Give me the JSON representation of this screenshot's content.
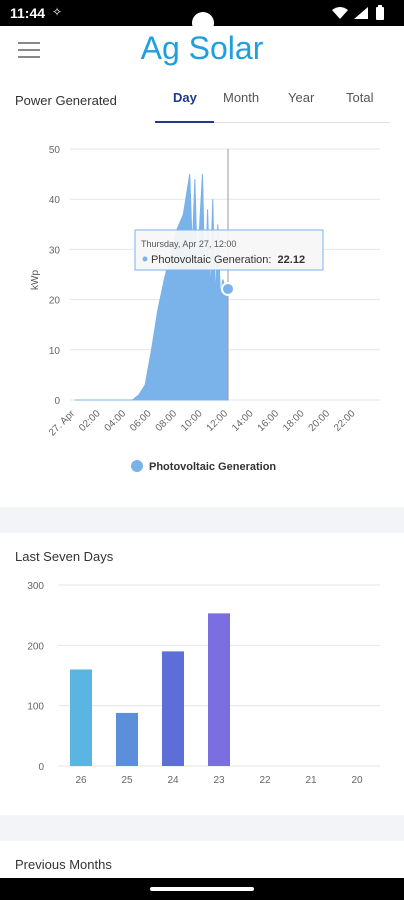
{
  "status": {
    "time": "11:44"
  },
  "app": {
    "title": "Ag Solar"
  },
  "power": {
    "label": "Power Generated",
    "tabs": [
      "Day",
      "Month",
      "Year",
      "Total"
    ],
    "active_tab": "Day"
  },
  "tooltip": {
    "date": "Thursday, Apr 27, 12:00",
    "series": "Photovoltaic Generation:",
    "value": "22.12"
  },
  "legend": {
    "label": "Photovoltaic Generation"
  },
  "seven_days": {
    "label": "Last Seven Days"
  },
  "previous": {
    "label": "Previous Months"
  },
  "colors": {
    "accent": "#1e9fe0",
    "area": "#7ab2ea",
    "tab_active": "#1f3a8a"
  },
  "chart_data": [
    {
      "type": "area",
      "title": "",
      "ylabel": "kWp",
      "ylim": [
        0,
        50
      ],
      "y_ticks": [
        0,
        10,
        20,
        30,
        40,
        50
      ],
      "x_ticks": [
        "27. Apr",
        "02:00",
        "04:00",
        "06:00",
        "08:00",
        "10:00",
        "12:00",
        "14:00",
        "16:00",
        "18:00",
        "20:00",
        "22:00"
      ],
      "series": [
        {
          "name": "Photovoltaic Generation",
          "x_hours": [
            0,
            4.5,
            5,
            5.5,
            6,
            6.5,
            7,
            7.5,
            8,
            8.5,
            9,
            9.2,
            9.4,
            9.6,
            9.8,
            10,
            10.2,
            10.4,
            10.6,
            10.8,
            11,
            11.2,
            11.4,
            11.6,
            11.8,
            12
          ],
          "values": [
            0,
            0,
            1,
            3,
            10,
            18,
            24,
            29,
            34,
            37,
            45,
            30,
            44,
            26,
            36,
            45,
            22,
            38,
            21,
            40,
            20,
            35,
            21,
            24,
            22,
            22.12
          ]
        }
      ],
      "cursor_hour": 12
    },
    {
      "type": "bar",
      "categories": [
        "26",
        "25",
        "24",
        "23",
        "22",
        "21",
        "20"
      ],
      "values": [
        160,
        88,
        190,
        253,
        0,
        0,
        0
      ],
      "bar_colors": [
        "#5ab5e0",
        "#5b8fd9",
        "#5e6ed8",
        "#7b6ee0",
        "#cccccc",
        "#cccccc",
        "#cccccc"
      ],
      "ylim": [
        0,
        300
      ],
      "y_ticks": [
        0,
        100,
        200,
        300
      ]
    }
  ]
}
